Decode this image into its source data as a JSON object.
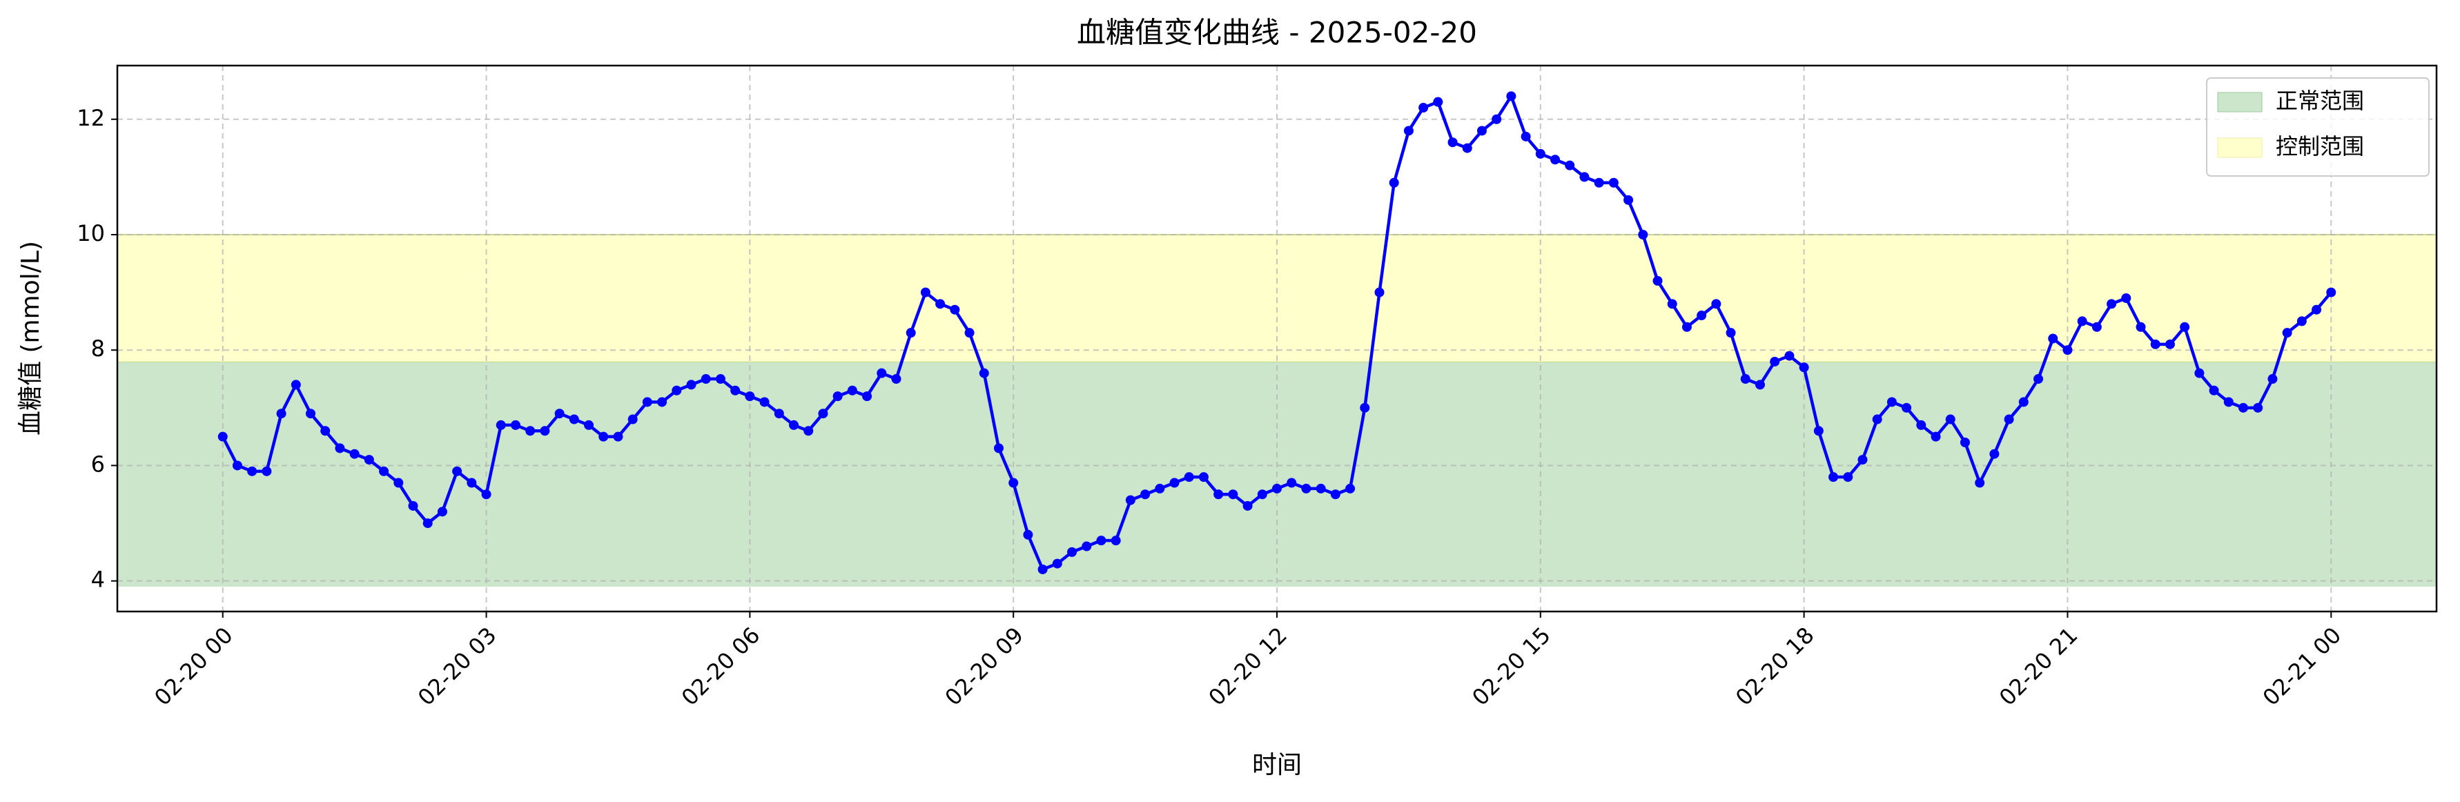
{
  "chart_data": {
    "type": "line",
    "title": "血糖值变化曲线 - 2025-02-20",
    "xlabel": "时间",
    "ylabel": "血糖值 (mmol/L)",
    "x": [
      0,
      10,
      20,
      30,
      40,
      50,
      60,
      70,
      80,
      90,
      100,
      110,
      120,
      130,
      140,
      150,
      160,
      170,
      180,
      190,
      200,
      210,
      220,
      230,
      240,
      250,
      260,
      270,
      280,
      290,
      300,
      310,
      320,
      330,
      340,
      350,
      360,
      370,
      380,
      390,
      400,
      410,
      420,
      430,
      440,
      450,
      460,
      470,
      480,
      490,
      500,
      510,
      520,
      530,
      540,
      550,
      560,
      570,
      580,
      590,
      600,
      610,
      620,
      630,
      640,
      650,
      660,
      670,
      680,
      690,
      700,
      710,
      720,
      730,
      740,
      750,
      760,
      770,
      780,
      790,
      800,
      810,
      820,
      830,
      840,
      850,
      860,
      870,
      880,
      890,
      900,
      910,
      920,
      930,
      940,
      950,
      960,
      970,
      980,
      990,
      1000,
      1010,
      1020,
      1030,
      1040,
      1050,
      1060,
      1070,
      1080,
      1090,
      1100,
      1110,
      1120,
      1130,
      1140,
      1150,
      1160,
      1170,
      1180,
      1190,
      1200,
      1210,
      1220,
      1230,
      1240,
      1250,
      1260,
      1270,
      1280,
      1290,
      1300,
      1310,
      1320,
      1330,
      1340,
      1350,
      1360,
      1370,
      1380,
      1390,
      1400,
      1410,
      1420,
      1430,
      1440
    ],
    "series": [
      {
        "color": "#0000ff",
        "values": [
          6.5,
          6.0,
          5.9,
          5.9,
          6.9,
          7.4,
          6.9,
          6.6,
          6.3,
          6.2,
          6.1,
          5.9,
          5.7,
          5.3,
          5.0,
          5.2,
          5.9,
          5.7,
          5.5,
          6.7,
          6.7,
          6.6,
          6.6,
          6.9,
          6.8,
          6.7,
          6.5,
          6.5,
          6.8,
          7.1,
          7.1,
          7.3,
          7.4,
          7.5,
          7.5,
          7.3,
          7.2,
          7.1,
          6.9,
          6.7,
          6.6,
          6.9,
          7.2,
          7.3,
          7.2,
          7.6,
          7.5,
          8.3,
          9.0,
          8.8,
          8.7,
          8.3,
          7.6,
          6.3,
          5.7,
          4.8,
          4.2,
          4.3,
          4.5,
          4.6,
          4.7,
          4.7,
          5.4,
          5.5,
          5.6,
          5.7,
          5.8,
          5.8,
          5.5,
          5.5,
          5.3,
          5.5,
          5.6,
          5.7,
          5.6,
          5.6,
          5.5,
          5.6,
          7.0,
          9.0,
          10.9,
          11.8,
          12.2,
          12.3,
          11.6,
          11.5,
          11.8,
          12.0,
          12.4,
          11.7,
          11.4,
          11.3,
          11.2,
          11.0,
          10.9,
          10.9,
          10.6,
          10.0,
          9.2,
          8.8,
          8.4,
          8.6,
          8.8,
          8.3,
          7.5,
          7.4,
          7.8,
          7.9,
          7.7,
          6.6,
          5.8,
          5.8,
          6.1,
          6.8,
          7.1,
          7.0,
          6.7,
          6.5,
          6.8,
          6.4,
          5.7,
          6.2,
          6.8,
          7.1,
          7.5,
          8.2,
          8.0,
          8.5,
          8.4,
          8.8,
          8.9,
          8.4,
          8.1,
          8.1,
          8.4,
          7.6,
          7.3,
          7.1,
          7.0,
          7.0,
          7.5,
          8.3,
          8.5,
          8.7,
          9.0
        ]
      }
    ],
    "bands": [
      {
        "name": "正常范围",
        "from": 3.9,
        "to": 7.8,
        "color": "#cce6cc"
      },
      {
        "name": "控制范围",
        "from": 7.8,
        "to": 10,
        "color": "#ffffcc"
      }
    ],
    "xlim": [
      -72,
      1512
    ],
    "xticks": [
      {
        "value": 0,
        "label": "02-20 00"
      },
      {
        "value": 180,
        "label": "02-20 03"
      },
      {
        "value": 360,
        "label": "02-20 06"
      },
      {
        "value": 540,
        "label": "02-20 09"
      },
      {
        "value": 720,
        "label": "02-20 12"
      },
      {
        "value": 900,
        "label": "02-20 15"
      },
      {
        "value": 1080,
        "label": "02-20 18"
      },
      {
        "value": 1260,
        "label": "02-20 21"
      },
      {
        "value": 1440,
        "label": "02-21 00"
      }
    ],
    "ylim": [
      3.47,
      12.93
    ],
    "yticks": [
      4,
      6,
      8,
      10,
      12
    ],
    "grid": true,
    "legend": "upper right"
  }
}
